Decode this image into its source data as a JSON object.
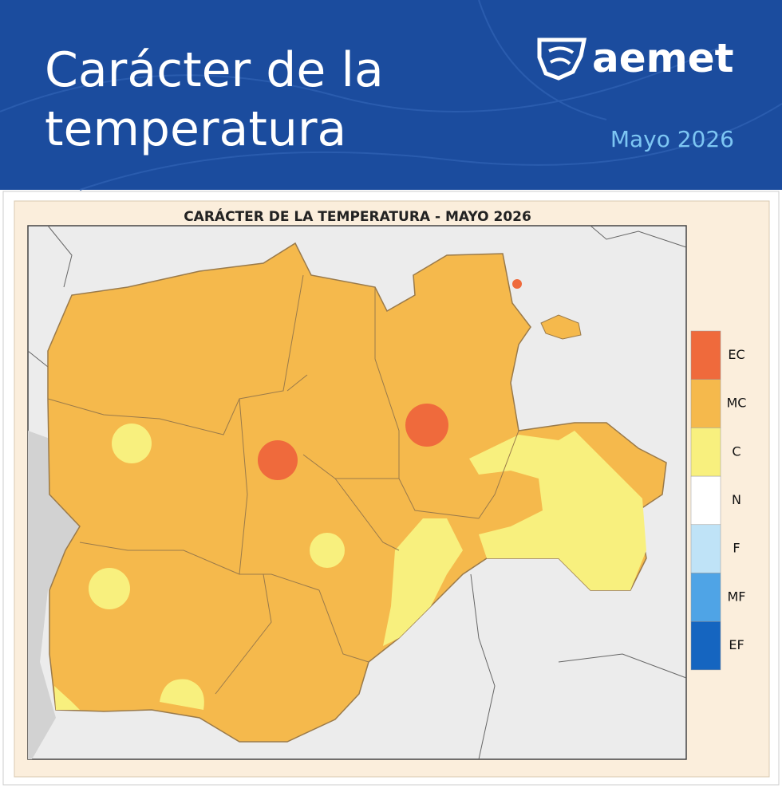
{
  "header": {
    "title_lines": [
      "Carácter de la",
      "temperatura"
    ],
    "brand": "aemet",
    "date": "Mayo 2026"
  },
  "map": {
    "title": "CARÁCTER DE LA TEMPERATURA - MAYO 2026",
    "legend": [
      {
        "label": "EC",
        "color": "#ef6a3c"
      },
      {
        "label": "MC",
        "color": "#f5b94c"
      },
      {
        "label": "C",
        "color": "#f8f07e"
      },
      {
        "label": "N",
        "color": "#ffffff"
      },
      {
        "label": "F",
        "color": "#bfe3f7"
      },
      {
        "label": "MF",
        "color": "#4fa4e6"
      },
      {
        "label": "EF",
        "color": "#1565c0"
      }
    ]
  }
}
